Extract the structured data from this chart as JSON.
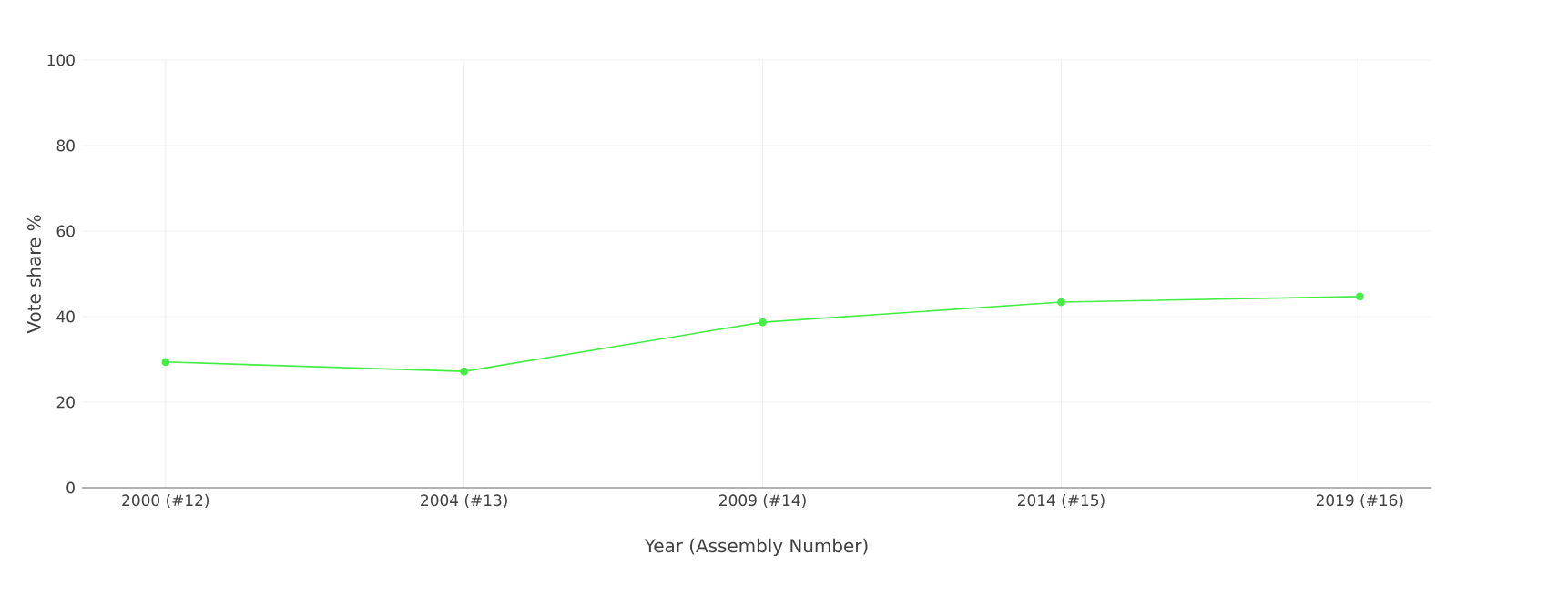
{
  "chart_data": {
    "type": "line",
    "xlabel": "Year (Assembly Number)",
    "ylabel": "Vote share %",
    "categories": [
      "2000 (#12)",
      "2004 (#13)",
      "2009 (#14)",
      "2014 (#15)",
      "2019 (#16)"
    ],
    "series": [
      {
        "color": "#44ee44",
        "values": [
          29.4,
          27.2,
          38.7,
          43.4,
          44.7
        ]
      }
    ],
    "ylim": [
      0,
      100
    ],
    "yticks": [
      0,
      20,
      40,
      60,
      80,
      100
    ],
    "grid": true,
    "marker": "circle",
    "line_style": "solid"
  }
}
